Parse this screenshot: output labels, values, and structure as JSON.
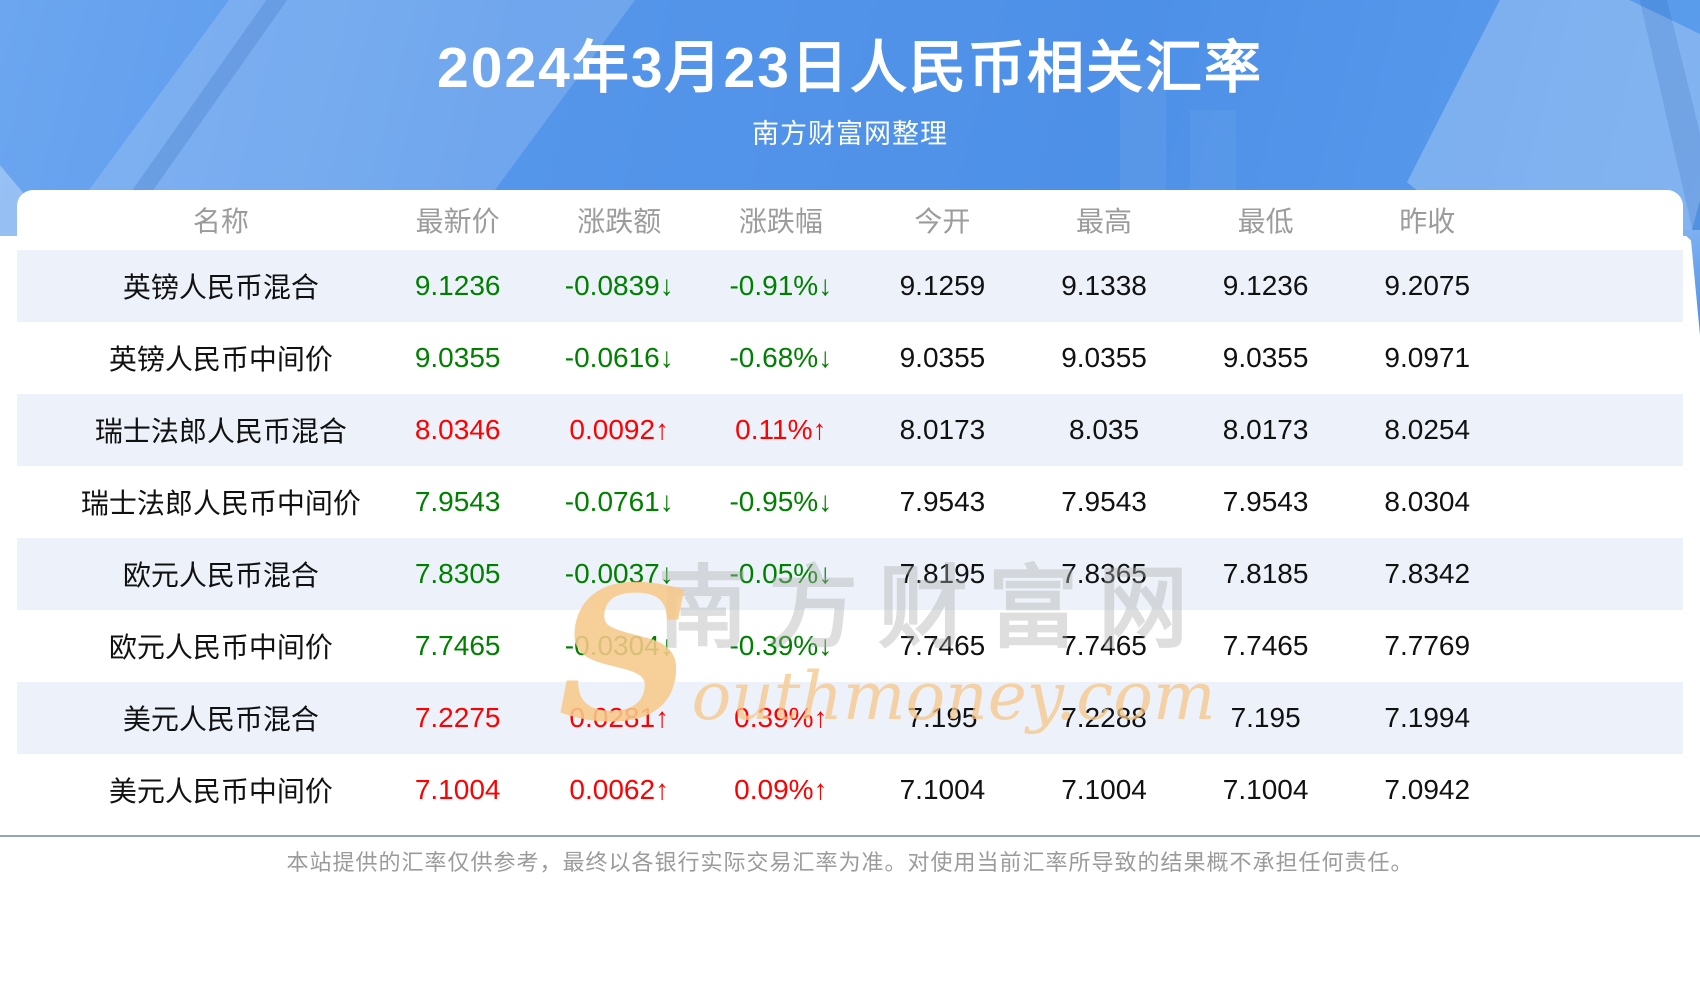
{
  "header": {
    "title": "2024年3月23日人民币相关汇率",
    "subtitle": "南方财富网整理"
  },
  "chart_data": {
    "type": "table",
    "title": "2024年3月23日人民币相关汇率",
    "columns": [
      "名称",
      "最新价",
      "涨跌额",
      "涨跌幅",
      "今开",
      "最高",
      "最低",
      "昨收"
    ],
    "rows": [
      {
        "name": "英镑人民币混合",
        "latest": "9.1236",
        "change": "-0.0839↓",
        "change_pct": "-0.91%↓",
        "open": "9.1259",
        "high": "9.1338",
        "low": "9.1236",
        "prev_close": "9.2075",
        "trend": "down"
      },
      {
        "name": "英镑人民币中间价",
        "latest": "9.0355",
        "change": "-0.0616↓",
        "change_pct": "-0.68%↓",
        "open": "9.0355",
        "high": "9.0355",
        "low": "9.0355",
        "prev_close": "9.0971",
        "trend": "down"
      },
      {
        "name": "瑞士法郎人民币混合",
        "latest": "8.0346",
        "change": "0.0092↑",
        "change_pct": "0.11%↑",
        "open": "8.0173",
        "high": "8.035",
        "low": "8.0173",
        "prev_close": "8.0254",
        "trend": "up"
      },
      {
        "name": "瑞士法郎人民币中间价",
        "latest": "7.9543",
        "change": "-0.0761↓",
        "change_pct": "-0.95%↓",
        "open": "7.9543",
        "high": "7.9543",
        "low": "7.9543",
        "prev_close": "8.0304",
        "trend": "down"
      },
      {
        "name": "欧元人民币混合",
        "latest": "7.8305",
        "change": "-0.0037↓",
        "change_pct": "-0.05%↓",
        "open": "7.8195",
        "high": "7.8365",
        "low": "7.8185",
        "prev_close": "7.8342",
        "trend": "down"
      },
      {
        "name": "欧元人民币中间价",
        "latest": "7.7465",
        "change": "-0.0304↓",
        "change_pct": "-0.39%↓",
        "open": "7.7465",
        "high": "7.7465",
        "low": "7.7465",
        "prev_close": "7.7769",
        "trend": "down"
      },
      {
        "name": "美元人民币混合",
        "latest": "7.2275",
        "change": "0.0281↑",
        "change_pct": "0.39%↑",
        "open": "7.195",
        "high": "7.2288",
        "low": "7.195",
        "prev_close": "7.1994",
        "trend": "up"
      },
      {
        "name": "美元人民币中间价",
        "latest": "7.1004",
        "change": "0.0062↑",
        "change_pct": "0.09%↑",
        "open": "7.1004",
        "high": "7.1004",
        "low": "7.1004",
        "prev_close": "7.0942",
        "trend": "up"
      }
    ]
  },
  "watermark": {
    "cn": "南方财富网",
    "en": "Southmoney.com"
  },
  "footer": {
    "disclaimer": "本站提供的汇率仅供参考，最终以各银行实际交易汇率为准。对使用当前汇率所导致的结果概不承担任何责任。"
  },
  "colors": {
    "up_red": "#fe0000",
    "down_green": "#008000",
    "banner_blue": "#5596ea",
    "row_stripe": "#edf2fa",
    "header_gray": "#9c9c9c"
  }
}
